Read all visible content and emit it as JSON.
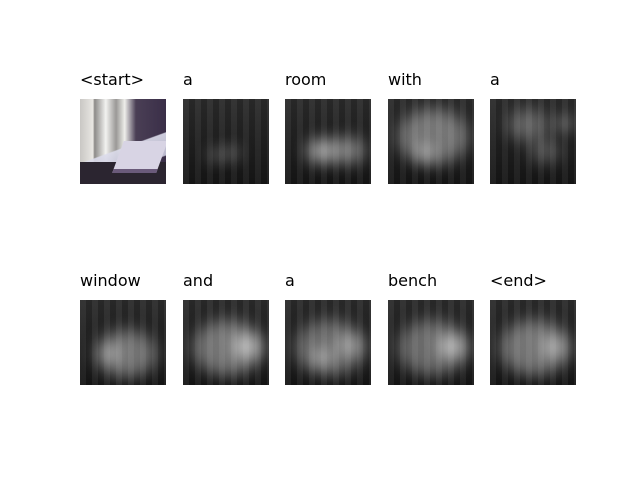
{
  "panels": [
    {
      "label": "<start>"
    },
    {
      "label": "a"
    },
    {
      "label": "room"
    },
    {
      "label": "with"
    },
    {
      "label": "a"
    },
    {
      "label": "window"
    },
    {
      "label": "and"
    },
    {
      "label": "a"
    },
    {
      "label": "bench"
    },
    {
      "label": "<end>"
    }
  ]
}
